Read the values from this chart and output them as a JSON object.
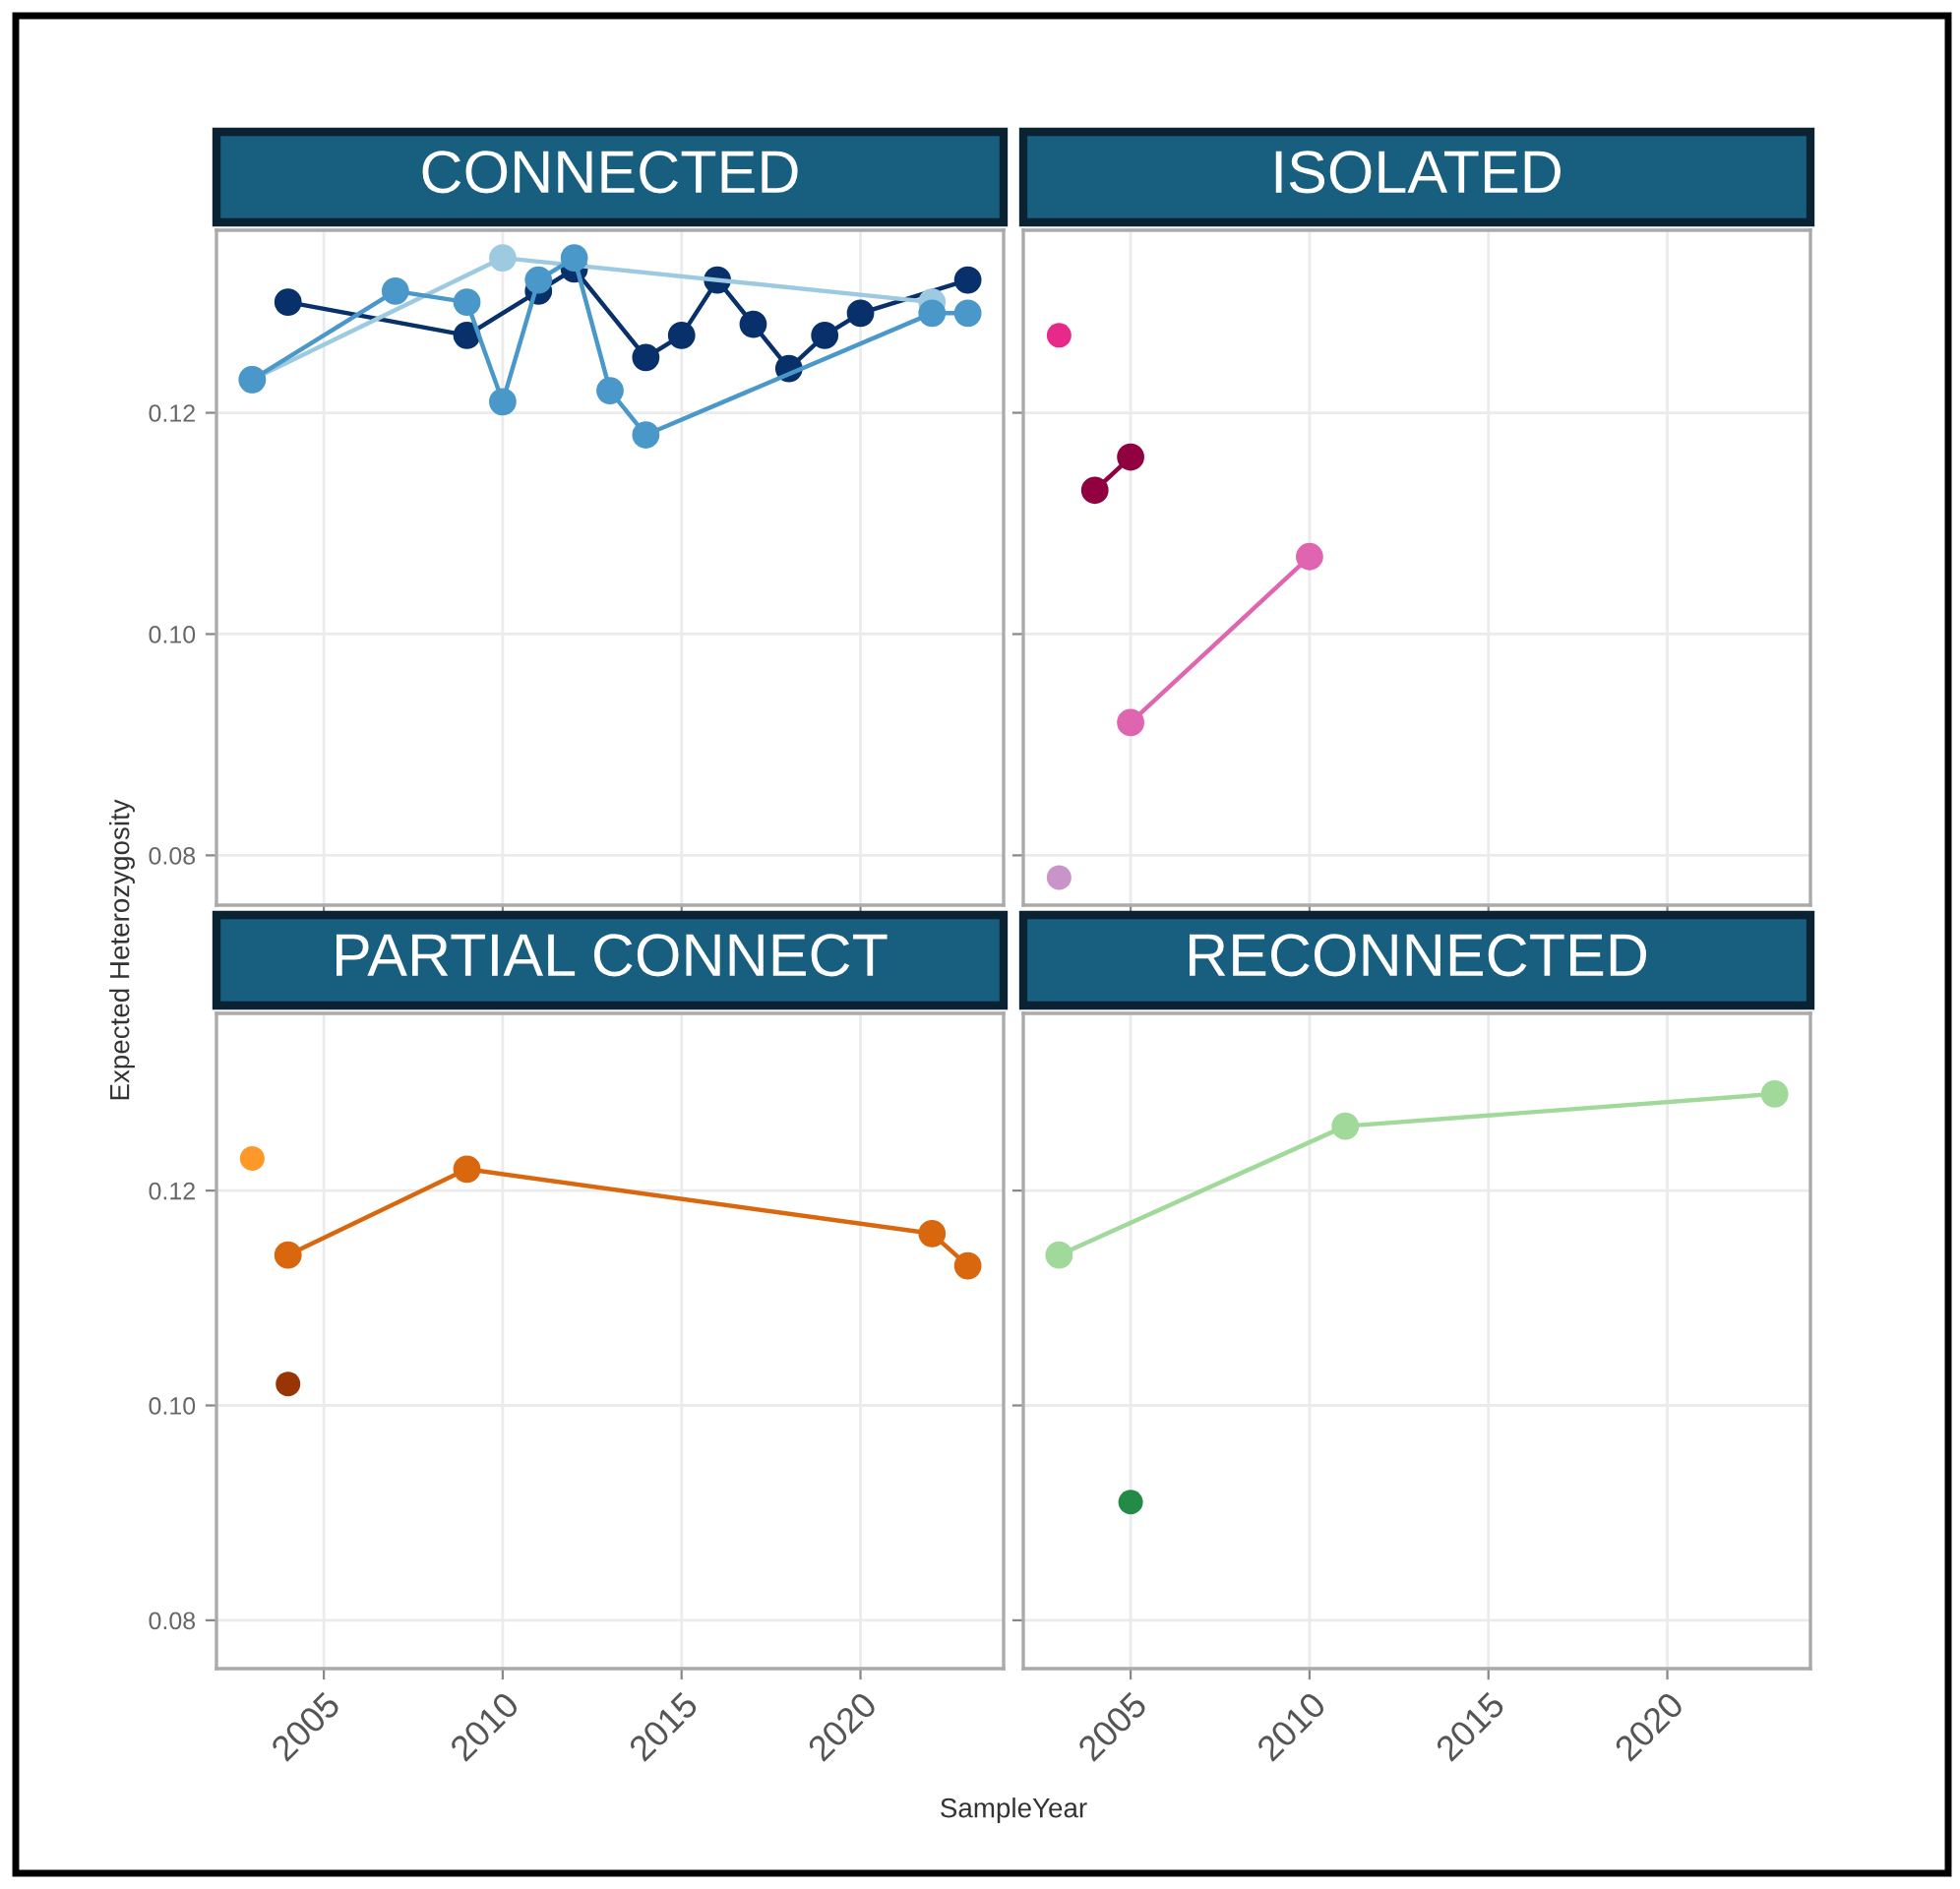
{
  "chart_data": [
    {
      "type": "line",
      "title": "CONNECTED",
      "ylabel": "Expected Heterozygosity",
      "xlim": [
        2002,
        2024
      ],
      "ylim": [
        0.0755,
        0.1365
      ],
      "xticks": [
        2005,
        2010,
        2015,
        2020
      ],
      "yticks": [
        0.08,
        {
          "value": 0.1,
          "label": "0.10"
        },
        0.12
      ],
      "grid": true,
      "marker": "circle",
      "tick_labels": "y",
      "series": [
        {
          "color": "#08306b",
          "x": [
            2004,
            2009,
            2011,
            2012,
            2014,
            2015,
            2016,
            2017,
            2018,
            2019,
            2020,
            2023
          ],
          "values": [
            0.13,
            0.127,
            0.131,
            0.133,
            0.125,
            0.127,
            0.132,
            0.128,
            0.124,
            0.127,
            0.129,
            0.132
          ]
        },
        {
          "color": "#9ecae1",
          "x": [
            2003,
            2010,
            2022
          ],
          "values": [
            0.123,
            0.134,
            0.13
          ]
        },
        {
          "color": "#4a98c9",
          "x": [
            2003,
            2007,
            2009,
            2010,
            2011,
            2012,
            2013,
            2014,
            2022,
            2023
          ],
          "values": [
            0.123,
            0.131,
            0.13,
            0.121,
            0.132,
            0.134,
            0.122,
            0.118,
            0.129,
            0.129
          ]
        }
      ]
    },
    {
      "type": "line",
      "title": "ISOLATED",
      "xlim": [
        2002,
        2024
      ],
      "ylim": [
        0.0755,
        0.1365
      ],
      "xticks": [
        2005,
        2010,
        2015,
        2020
      ],
      "yticks": [
        0.08,
        0.1,
        0.12
      ],
      "grid": true,
      "marker": "circle",
      "tick_labels": false,
      "series": [
        {
          "type": "scatter",
          "color": "#e7298a",
          "x": [
            2003
          ],
          "values": [
            0.127
          ]
        },
        {
          "color": "#91003f",
          "x": [
            2004,
            2005
          ],
          "values": [
            0.113,
            0.116
          ]
        },
        {
          "color": "#df65b0",
          "x": [
            2005,
            2010
          ],
          "values": [
            0.092,
            0.107
          ]
        },
        {
          "type": "scatter",
          "color": "#c994c7",
          "x": [
            2003
          ],
          "values": [
            0.078
          ]
        }
      ]
    },
    {
      "type": "line",
      "title": "PARTIAL CONNECT",
      "xlabel": "SampleYear",
      "xlim": [
        2002,
        2024
      ],
      "ylim": [
        0.0755,
        0.1365
      ],
      "xticks": [
        2005,
        2010,
        2015,
        2020
      ],
      "yticks": [
        0.08,
        {
          "value": 0.1,
          "label": "0.10"
        },
        0.12
      ],
      "grid": true,
      "marker": "circle",
      "series": [
        {
          "type": "scatter",
          "color": "#fe9929",
          "x": [
            2003
          ],
          "values": [
            0.123
          ]
        },
        {
          "color": "#d9670e",
          "x": [
            2004,
            2009,
            2022,
            2023
          ],
          "values": [
            0.114,
            0.122,
            0.116,
            0.113
          ]
        },
        {
          "type": "scatter",
          "color": "#993404",
          "x": [
            2004
          ],
          "values": [
            0.102
          ]
        }
      ]
    },
    {
      "type": "line",
      "title": "RECONNECTED",
      "xlim": [
        2002,
        2024
      ],
      "ylim": [
        0.0755,
        0.1365
      ],
      "xticks": [
        2005,
        2010,
        2015,
        2020
      ],
      "yticks": [
        0.08,
        0.1,
        0.12
      ],
      "grid": true,
      "marker": "circle",
      "tick_labels": "x",
      "series": [
        {
          "color": "#a1d99b",
          "x": [
            2003,
            2011,
            2023
          ],
          "values": [
            0.114,
            0.126,
            0.129
          ]
        },
        {
          "type": "scatter",
          "color": "#238b45",
          "x": [
            2005
          ],
          "values": [
            0.091
          ]
        }
      ]
    }
  ]
}
